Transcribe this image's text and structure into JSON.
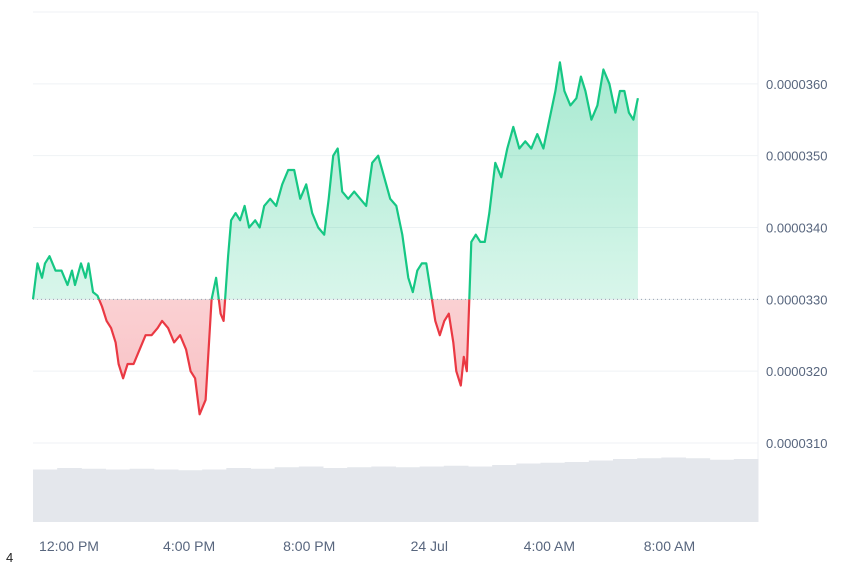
{
  "chart_data": {
    "type": "area",
    "baseline": 3.3e-05,
    "ylim": [
      2.99e-05,
      3.7e-05
    ],
    "yticks": [
      {
        "value": 3.1e-05,
        "label": "0.0000310"
      },
      {
        "value": 3.2e-05,
        "label": "0.0000320"
      },
      {
        "value": 3.3e-05,
        "label": "0.0000330"
      },
      {
        "value": 3.4e-05,
        "label": "0.0000340"
      },
      {
        "value": 3.5e-05,
        "label": "0.0000350"
      },
      {
        "value": 3.6e-05,
        "label": "0.0000360"
      }
    ],
    "xlim": [
      10.8,
      34.95
    ],
    "xticks": [
      {
        "value": 12,
        "label": "12:00 PM"
      },
      {
        "value": 16,
        "label": "4:00 PM"
      },
      {
        "value": 20,
        "label": "8:00 PM"
      },
      {
        "value": 24,
        "label": "24 Jul"
      },
      {
        "value": 28,
        "label": "4:00 AM"
      },
      {
        "value": 32,
        "label": "8:00 AM"
      }
    ],
    "colors": {
      "up": "#16c784",
      "down": "#ea3943",
      "grid": "#eff2f5",
      "volume": "#e4e7ec"
    },
    "series_price": [
      [
        10.8,
        3.3e-05
      ],
      [
        10.95,
        3.35e-05
      ],
      [
        11.1,
        3.33e-05
      ],
      [
        11.2,
        3.35e-05
      ],
      [
        11.35,
        3.36e-05
      ],
      [
        11.55,
        3.34e-05
      ],
      [
        11.75,
        3.34e-05
      ],
      [
        11.95,
        3.32e-05
      ],
      [
        12.1,
        3.34e-05
      ],
      [
        12.2,
        3.32e-05
      ],
      [
        12.4,
        3.35e-05
      ],
      [
        12.55,
        3.33e-05
      ],
      [
        12.65,
        3.35e-05
      ],
      [
        12.8,
        3.31e-05
      ],
      [
        12.95,
        3.305e-05
      ],
      [
        13.1,
        3.29e-05
      ],
      [
        13.25,
        3.27e-05
      ],
      [
        13.4,
        3.26e-05
      ],
      [
        13.55,
        3.24e-05
      ],
      [
        13.65,
        3.21e-05
      ],
      [
        13.8,
        3.19e-05
      ],
      [
        13.95,
        3.21e-05
      ],
      [
        14.15,
        3.21e-05
      ],
      [
        14.35,
        3.23e-05
      ],
      [
        14.55,
        3.25e-05
      ],
      [
        14.75,
        3.25e-05
      ],
      [
        14.95,
        3.26e-05
      ],
      [
        15.1,
        3.27e-05
      ],
      [
        15.3,
        3.26e-05
      ],
      [
        15.5,
        3.24e-05
      ],
      [
        15.7,
        3.25e-05
      ],
      [
        15.9,
        3.23e-05
      ],
      [
        16.05,
        3.2e-05
      ],
      [
        16.2,
        3.19e-05
      ],
      [
        16.35,
        3.14e-05
      ],
      [
        16.55,
        3.16e-05
      ],
      [
        16.75,
        3.3e-05
      ],
      [
        16.9,
        3.33e-05
      ],
      [
        17.05,
        3.28e-05
      ],
      [
        17.15,
        3.27e-05
      ],
      [
        17.3,
        3.36e-05
      ],
      [
        17.4,
        3.41e-05
      ],
      [
        17.55,
        3.42e-05
      ],
      [
        17.7,
        3.41e-05
      ],
      [
        17.85,
        3.43e-05
      ],
      [
        18.0,
        3.4e-05
      ],
      [
        18.2,
        3.41e-05
      ],
      [
        18.35,
        3.4e-05
      ],
      [
        18.5,
        3.43e-05
      ],
      [
        18.7,
        3.44e-05
      ],
      [
        18.9,
        3.43e-05
      ],
      [
        19.1,
        3.46e-05
      ],
      [
        19.3,
        3.48e-05
      ],
      [
        19.5,
        3.48e-05
      ],
      [
        19.7,
        3.44e-05
      ],
      [
        19.9,
        3.46e-05
      ],
      [
        20.1,
        3.42e-05
      ],
      [
        20.3,
        3.4e-05
      ],
      [
        20.5,
        3.39e-05
      ],
      [
        20.65,
        3.44e-05
      ],
      [
        20.8,
        3.5e-05
      ],
      [
        20.95,
        3.51e-05
      ],
      [
        21.1,
        3.45e-05
      ],
      [
        21.3,
        3.44e-05
      ],
      [
        21.5,
        3.45e-05
      ],
      [
        21.7,
        3.44e-05
      ],
      [
        21.9,
        3.43e-05
      ],
      [
        22.1,
        3.49e-05
      ],
      [
        22.3,
        3.5e-05
      ],
      [
        22.5,
        3.47e-05
      ],
      [
        22.7,
        3.44e-05
      ],
      [
        22.9,
        3.43e-05
      ],
      [
        23.1,
        3.39e-05
      ],
      [
        23.3,
        3.33e-05
      ],
      [
        23.45,
        3.31e-05
      ],
      [
        23.6,
        3.34e-05
      ],
      [
        23.75,
        3.35e-05
      ],
      [
        23.9,
        3.35e-05
      ],
      [
        24.05,
        3.31e-05
      ],
      [
        24.2,
        3.27e-05
      ],
      [
        24.35,
        3.25e-05
      ],
      [
        24.5,
        3.27e-05
      ],
      [
        24.65,
        3.28e-05
      ],
      [
        24.8,
        3.24e-05
      ],
      [
        24.9,
        3.2e-05
      ],
      [
        25.05,
        3.18e-05
      ],
      [
        25.15,
        3.22e-05
      ],
      [
        25.25,
        3.2e-05
      ],
      [
        25.4,
        3.38e-05
      ],
      [
        25.55,
        3.39e-05
      ],
      [
        25.7,
        3.38e-05
      ],
      [
        25.85,
        3.38e-05
      ],
      [
        26.0,
        3.42e-05
      ],
      [
        26.2,
        3.49e-05
      ],
      [
        26.4,
        3.47e-05
      ],
      [
        26.6,
        3.51e-05
      ],
      [
        26.8,
        3.54e-05
      ],
      [
        27.0,
        3.51e-05
      ],
      [
        27.2,
        3.52e-05
      ],
      [
        27.4,
        3.51e-05
      ],
      [
        27.6,
        3.53e-05
      ],
      [
        27.8,
        3.51e-05
      ],
      [
        28.0,
        3.55e-05
      ],
      [
        28.2,
        3.59e-05
      ],
      [
        28.35,
        3.63e-05
      ],
      [
        28.5,
        3.59e-05
      ],
      [
        28.7,
        3.57e-05
      ],
      [
        28.9,
        3.58e-05
      ],
      [
        29.05,
        3.61e-05
      ],
      [
        29.2,
        3.59e-05
      ],
      [
        29.4,
        3.55e-05
      ],
      [
        29.6,
        3.57e-05
      ],
      [
        29.8,
        3.62e-05
      ],
      [
        30.0,
        3.6e-05
      ],
      [
        30.2,
        3.56e-05
      ],
      [
        30.35,
        3.59e-05
      ],
      [
        30.5,
        3.59e-05
      ],
      [
        30.65,
        3.56e-05
      ],
      [
        30.8,
        3.55e-05
      ],
      [
        30.95,
        3.58e-05
      ]
    ],
    "series_volume_relative": [
      0.7,
      0.72,
      0.71,
      0.7,
      0.71,
      0.7,
      0.69,
      0.7,
      0.72,
      0.71,
      0.73,
      0.74,
      0.72,
      0.73,
      0.74,
      0.73,
      0.74,
      0.75,
      0.74,
      0.76,
      0.78,
      0.79,
      0.8,
      0.82,
      0.84,
      0.85,
      0.86,
      0.85,
      0.83,
      0.84
    ]
  },
  "footnote": "4"
}
